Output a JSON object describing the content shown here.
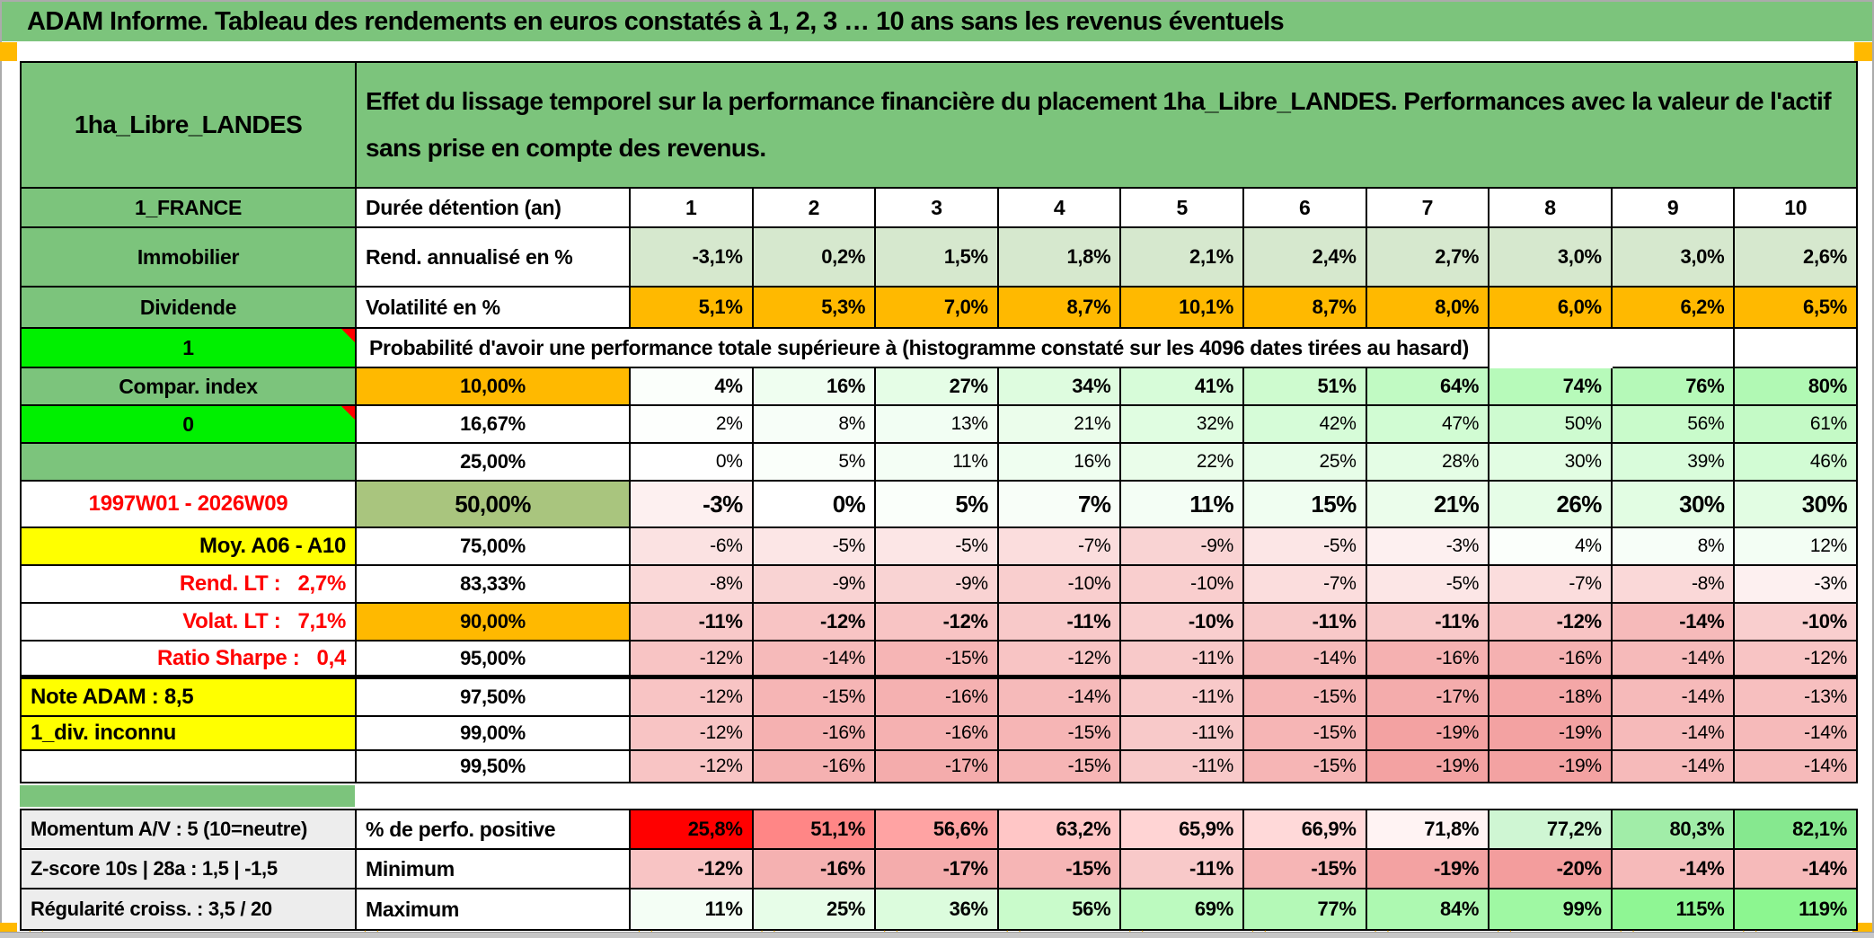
{
  "page_title": "ADAM Informe. Tableau des rendements en euros constatés à 1, 2, 3 … 10 ans sans les revenus éventuels",
  "asset": {
    "name": "1ha_Libre_LANDES",
    "description": "Effet du lissage temporel sur la performance financière du placement 1ha_Libre_LANDES. Performances avec la valeur de l'actif sans prise en compte des revenus."
  },
  "table": {
    "header_rows": [
      {
        "label": "1_FRANCE",
        "metric": "Durée détention (an)",
        "values": [
          "1",
          "2",
          "3",
          "4",
          "5",
          "6",
          "7",
          "8",
          "9",
          "10"
        ],
        "type": "years"
      },
      {
        "label": "Immobilier",
        "metric": "Rend. annualisé en %",
        "values": [
          "-3,1%",
          "0,2%",
          "1,5%",
          "1,8%",
          "2,1%",
          "2,4%",
          "2,7%",
          "3,0%",
          "3,0%",
          "2,6%"
        ],
        "type": "rendement"
      },
      {
        "label": "Dividende",
        "metric": "Volatilité en %",
        "values": [
          "5,1%",
          "5,3%",
          "7,0%",
          "8,7%",
          "10,1%",
          "8,7%",
          "8,0%",
          "6,0%",
          "6,2%",
          "6,5%"
        ],
        "type": "volatilite"
      }
    ],
    "probability_header": {
      "label": "1",
      "text": "Probabilité d'avoir une performance totale supérieure à (histogramme constaté sur les 4096 dates tirées au hasard)"
    },
    "probability_rows": [
      {
        "label": "Compar. index",
        "label_style": "green",
        "threshold": "10,00%",
        "threshold_style": "orange",
        "bold": true,
        "values": [
          "4%",
          "16%",
          "27%",
          "34%",
          "41%",
          "51%",
          "64%",
          "74%",
          "76%",
          "80%"
        ]
      },
      {
        "label": "0",
        "label_style": "bright",
        "threshold": "16,67%",
        "threshold_style": "white",
        "bold": false,
        "values": [
          "2%",
          "8%",
          "13%",
          "21%",
          "32%",
          "42%",
          "47%",
          "50%",
          "56%",
          "61%"
        ]
      },
      {
        "label": "",
        "label_style": "green-empty",
        "threshold": "25,00%",
        "threshold_style": "white",
        "bold": false,
        "values": [
          "0%",
          "5%",
          "11%",
          "16%",
          "22%",
          "25%",
          "28%",
          "30%",
          "39%",
          "46%"
        ]
      },
      {
        "label": "1997W01 - 2026W09",
        "label_style": "red-center",
        "threshold": "50,00%",
        "threshold_style": "sage",
        "bold": true,
        "big": true,
        "values": [
          "-3%",
          "0%",
          "5%",
          "7%",
          "11%",
          "15%",
          "21%",
          "26%",
          "30%",
          "30%"
        ]
      },
      {
        "label": "Moy. A06 - A10",
        "label_style": "yellow-right",
        "threshold": "75,00%",
        "threshold_style": "white",
        "bold": false,
        "values": [
          "-6%",
          "-5%",
          "-5%",
          "-7%",
          "-9%",
          "-5%",
          "-3%",
          "4%",
          "8%",
          "12%"
        ]
      },
      {
        "label": "Rend. LT :   2,7%",
        "label_style": "red-right",
        "threshold": "83,33%",
        "threshold_style": "white",
        "bold": false,
        "values": [
          "-8%",
          "-9%",
          "-9%",
          "-10%",
          "-10%",
          "-7%",
          "-5%",
          "-7%",
          "-8%",
          "-3%"
        ]
      },
      {
        "label": "Volat. LT :   7,1%",
        "label_style": "red-right",
        "threshold": "90,00%",
        "threshold_style": "orange",
        "bold": true,
        "values": [
          "-11%",
          "-12%",
          "-12%",
          "-11%",
          "-10%",
          "-11%",
          "-11%",
          "-12%",
          "-14%",
          "-10%"
        ]
      },
      {
        "label": "Ratio Sharpe :   0,4",
        "label_style": "red-right",
        "threshold": "95,00%",
        "threshold_style": "white",
        "bold": false,
        "thick_bottom": true,
        "values": [
          "-12%",
          "-14%",
          "-15%",
          "-12%",
          "-11%",
          "-14%",
          "-16%",
          "-16%",
          "-14%",
          "-12%"
        ]
      },
      {
        "label": "Note ADAM : 8,5",
        "label_style": "yellow-left",
        "threshold": "97,50%",
        "threshold_style": "white",
        "bold": false,
        "values": [
          "-12%",
          "-15%",
          "-16%",
          "-14%",
          "-11%",
          "-15%",
          "-17%",
          "-18%",
          "-14%",
          "-13%"
        ]
      },
      {
        "label": "1_div. inconnu",
        "label_style": "yellow-left",
        "threshold": "99,00%",
        "threshold_style": "white",
        "bold": false,
        "values": [
          "-12%",
          "-16%",
          "-16%",
          "-15%",
          "-11%",
          "-15%",
          "-19%",
          "-19%",
          "-14%",
          "-14%"
        ]
      },
      {
        "label": "",
        "label_style": "white",
        "threshold": "99,50%",
        "threshold_style": "white",
        "bold": false,
        "values": [
          "-12%",
          "-16%",
          "-17%",
          "-15%",
          "-11%",
          "-15%",
          "-19%",
          "-19%",
          "-14%",
          "-14%"
        ]
      }
    ],
    "stats_rows": [
      {
        "label": "Momentum A/V : 5 (10=neutre)",
        "metric": "% de perfo. positive",
        "scale": "perfo",
        "values": [
          "25,8%",
          "51,1%",
          "56,6%",
          "63,2%",
          "65,9%",
          "66,9%",
          "71,8%",
          "77,2%",
          "80,3%",
          "82,1%"
        ]
      },
      {
        "label": "Z-score 10s | 28a : 1,5 | -1,5",
        "metric": "Minimum",
        "scale": "heat",
        "values": [
          "-12%",
          "-16%",
          "-17%",
          "-15%",
          "-11%",
          "-15%",
          "-19%",
          "-20%",
          "-14%",
          "-14%"
        ]
      },
      {
        "label": "Régularité croiss. : 3,5 / 20",
        "metric": "Maximum",
        "scale": "heat",
        "values": [
          "11%",
          "25%",
          "36%",
          "56%",
          "69%",
          "77%",
          "84%",
          "99%",
          "115%",
          "119%"
        ]
      }
    ]
  },
  "colors": {
    "band_green": "#7CC47C",
    "bright_green": "#00F000",
    "sage_light": "#D6E8CE",
    "sage": "#A9C57E",
    "orange": "#FFB900",
    "yellow": "#FFFF00",
    "gray_label": "#EDEDED",
    "red_text": "#FF0000",
    "heat_green": "#7CF581",
    "heat_pink": "#F29898",
    "heat_red": "#FF0000",
    "perfo_green": "#86E88F"
  },
  "decor": {
    "caret_marks": "▲▲"
  }
}
